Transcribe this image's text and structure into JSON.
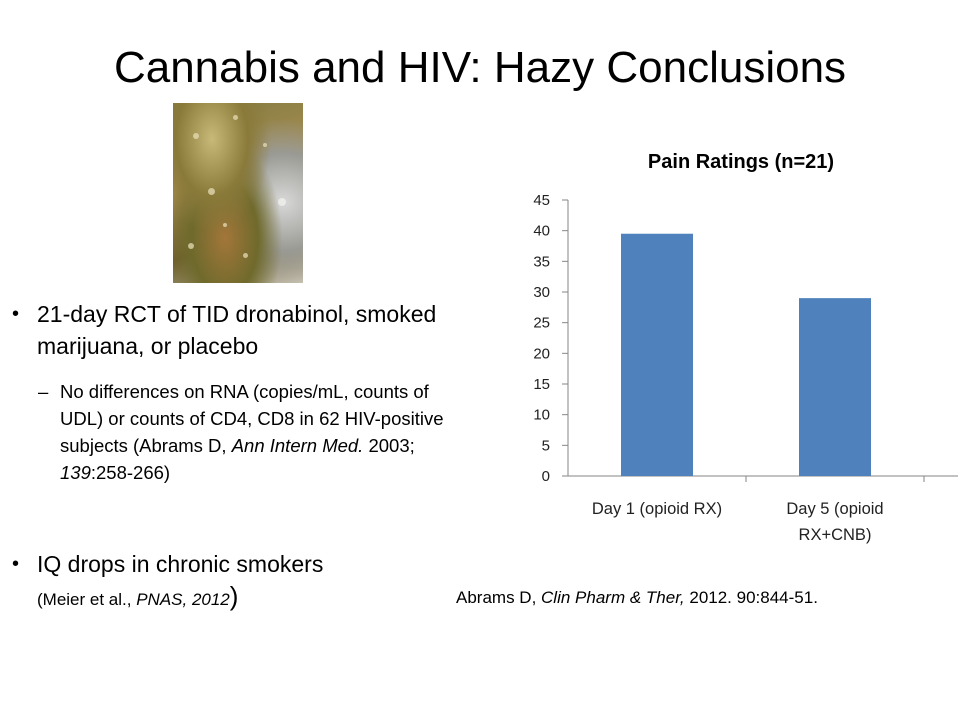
{
  "slide": {
    "title": "Cannabis and HIV: Hazy Conclusions",
    "photo_icon": "cannabis-buds-photo",
    "bullet1": {
      "text": "21-day RCT of TID dronabinol, smoked marijuana, or placebo",
      "sub": {
        "text_a": "No differences on RNA (copies/mL, counts of UDL) or counts of CD4, CD8 in 62 HIV-positive subjects (Abrams D, ",
        "journal": "Ann Intern Med.",
        "text_b": " 2003; ",
        "volume": "139",
        "pages": ":258-266)"
      }
    },
    "bullet2": {
      "text": "IQ drops in chronic smokers",
      "cite_open": "(Meier et al., ",
      "cite_journal": "PNAS, 2012",
      "cite_close": ")"
    },
    "chart_credit": {
      "author": "Abrams D, ",
      "journal": "Clin Pharm & Ther,",
      "rest": " 2012. 90:844-51."
    }
  },
  "chart_data": {
    "type": "bar",
    "title": "Pain Ratings (n=21)",
    "categories": [
      [
        "Day 1 (opioid RX)"
      ],
      [
        "Day 5 (opioid",
        "RX+CNB)"
      ]
    ],
    "values": [
      39.5,
      29
    ],
    "ylim": [
      0,
      45
    ],
    "yticks": [
      "45",
      "40",
      "35",
      "30",
      "25",
      "20",
      "15",
      "10",
      "5",
      "0"
    ],
    "bar_color": "#4f81bd",
    "axis_color": "#868686",
    "grid": false,
    "legend": false
  }
}
